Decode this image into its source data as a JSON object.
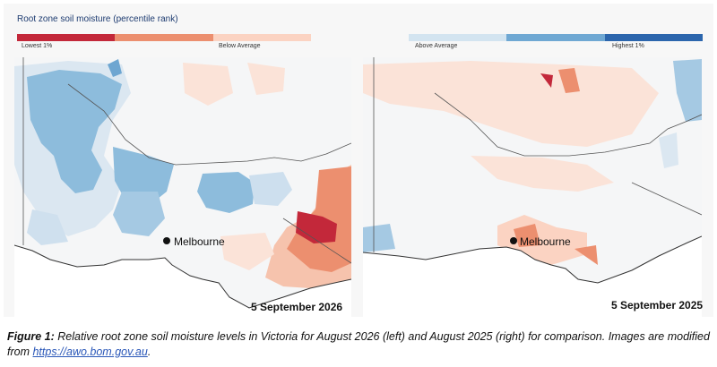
{
  "legend": {
    "title": "Root zone soil moisture (percentile rank)",
    "colors": [
      "#c3283a",
      "#ec8f6f",
      "#fbd3c2",
      "#f7f7f7",
      "#d3e4f0",
      "#6fa8d3",
      "#2c66ad"
    ],
    "labels": [
      "Lowest 1%",
      "Below Average",
      "Above Average",
      "Highest 1%"
    ]
  },
  "maps": [
    {
      "city": "Melbourne",
      "date": "5 September 2026"
    },
    {
      "city": "Melbourne",
      "date": "5 September 2025"
    }
  ],
  "caption": {
    "figure_label": "Figure 1:",
    "text": "Relative root zone soil moisture levels in Victoria for August 2026 (left) and August 2025 (right) for comparison. Images are modified from",
    "link": "https://awo.bom.gov.au",
    "end": "."
  }
}
